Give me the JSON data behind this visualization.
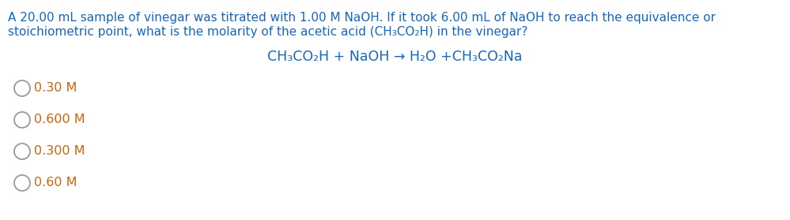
{
  "background_color": "#ffffff",
  "question_line1": "A 20.00 mL sample of vinegar was titrated with 1.00 M NaOH. If it took 6.00 mL of NaOH to reach the equivalence or",
  "question_line2": "stoichiometric point, what is the molarity of the acetic acid (CH₃CO₂H) in the vinegar?",
  "equation_text": "CH₃CO₂H + NaOH → H₂O +CH₃CO₂Na",
  "choices": [
    "0.30 M",
    "0.600 M",
    "0.300 M",
    "0.60 M"
  ],
  "text_color_blue": "#1565c0",
  "text_color_orange": "#c8660a",
  "circle_color": "#999999",
  "question_fontsize": 11.0,
  "equation_fontsize": 12.5,
  "choice_fontsize": 11.5,
  "fig_width": 9.99,
  "fig_height": 2.79,
  "dpi": 100
}
